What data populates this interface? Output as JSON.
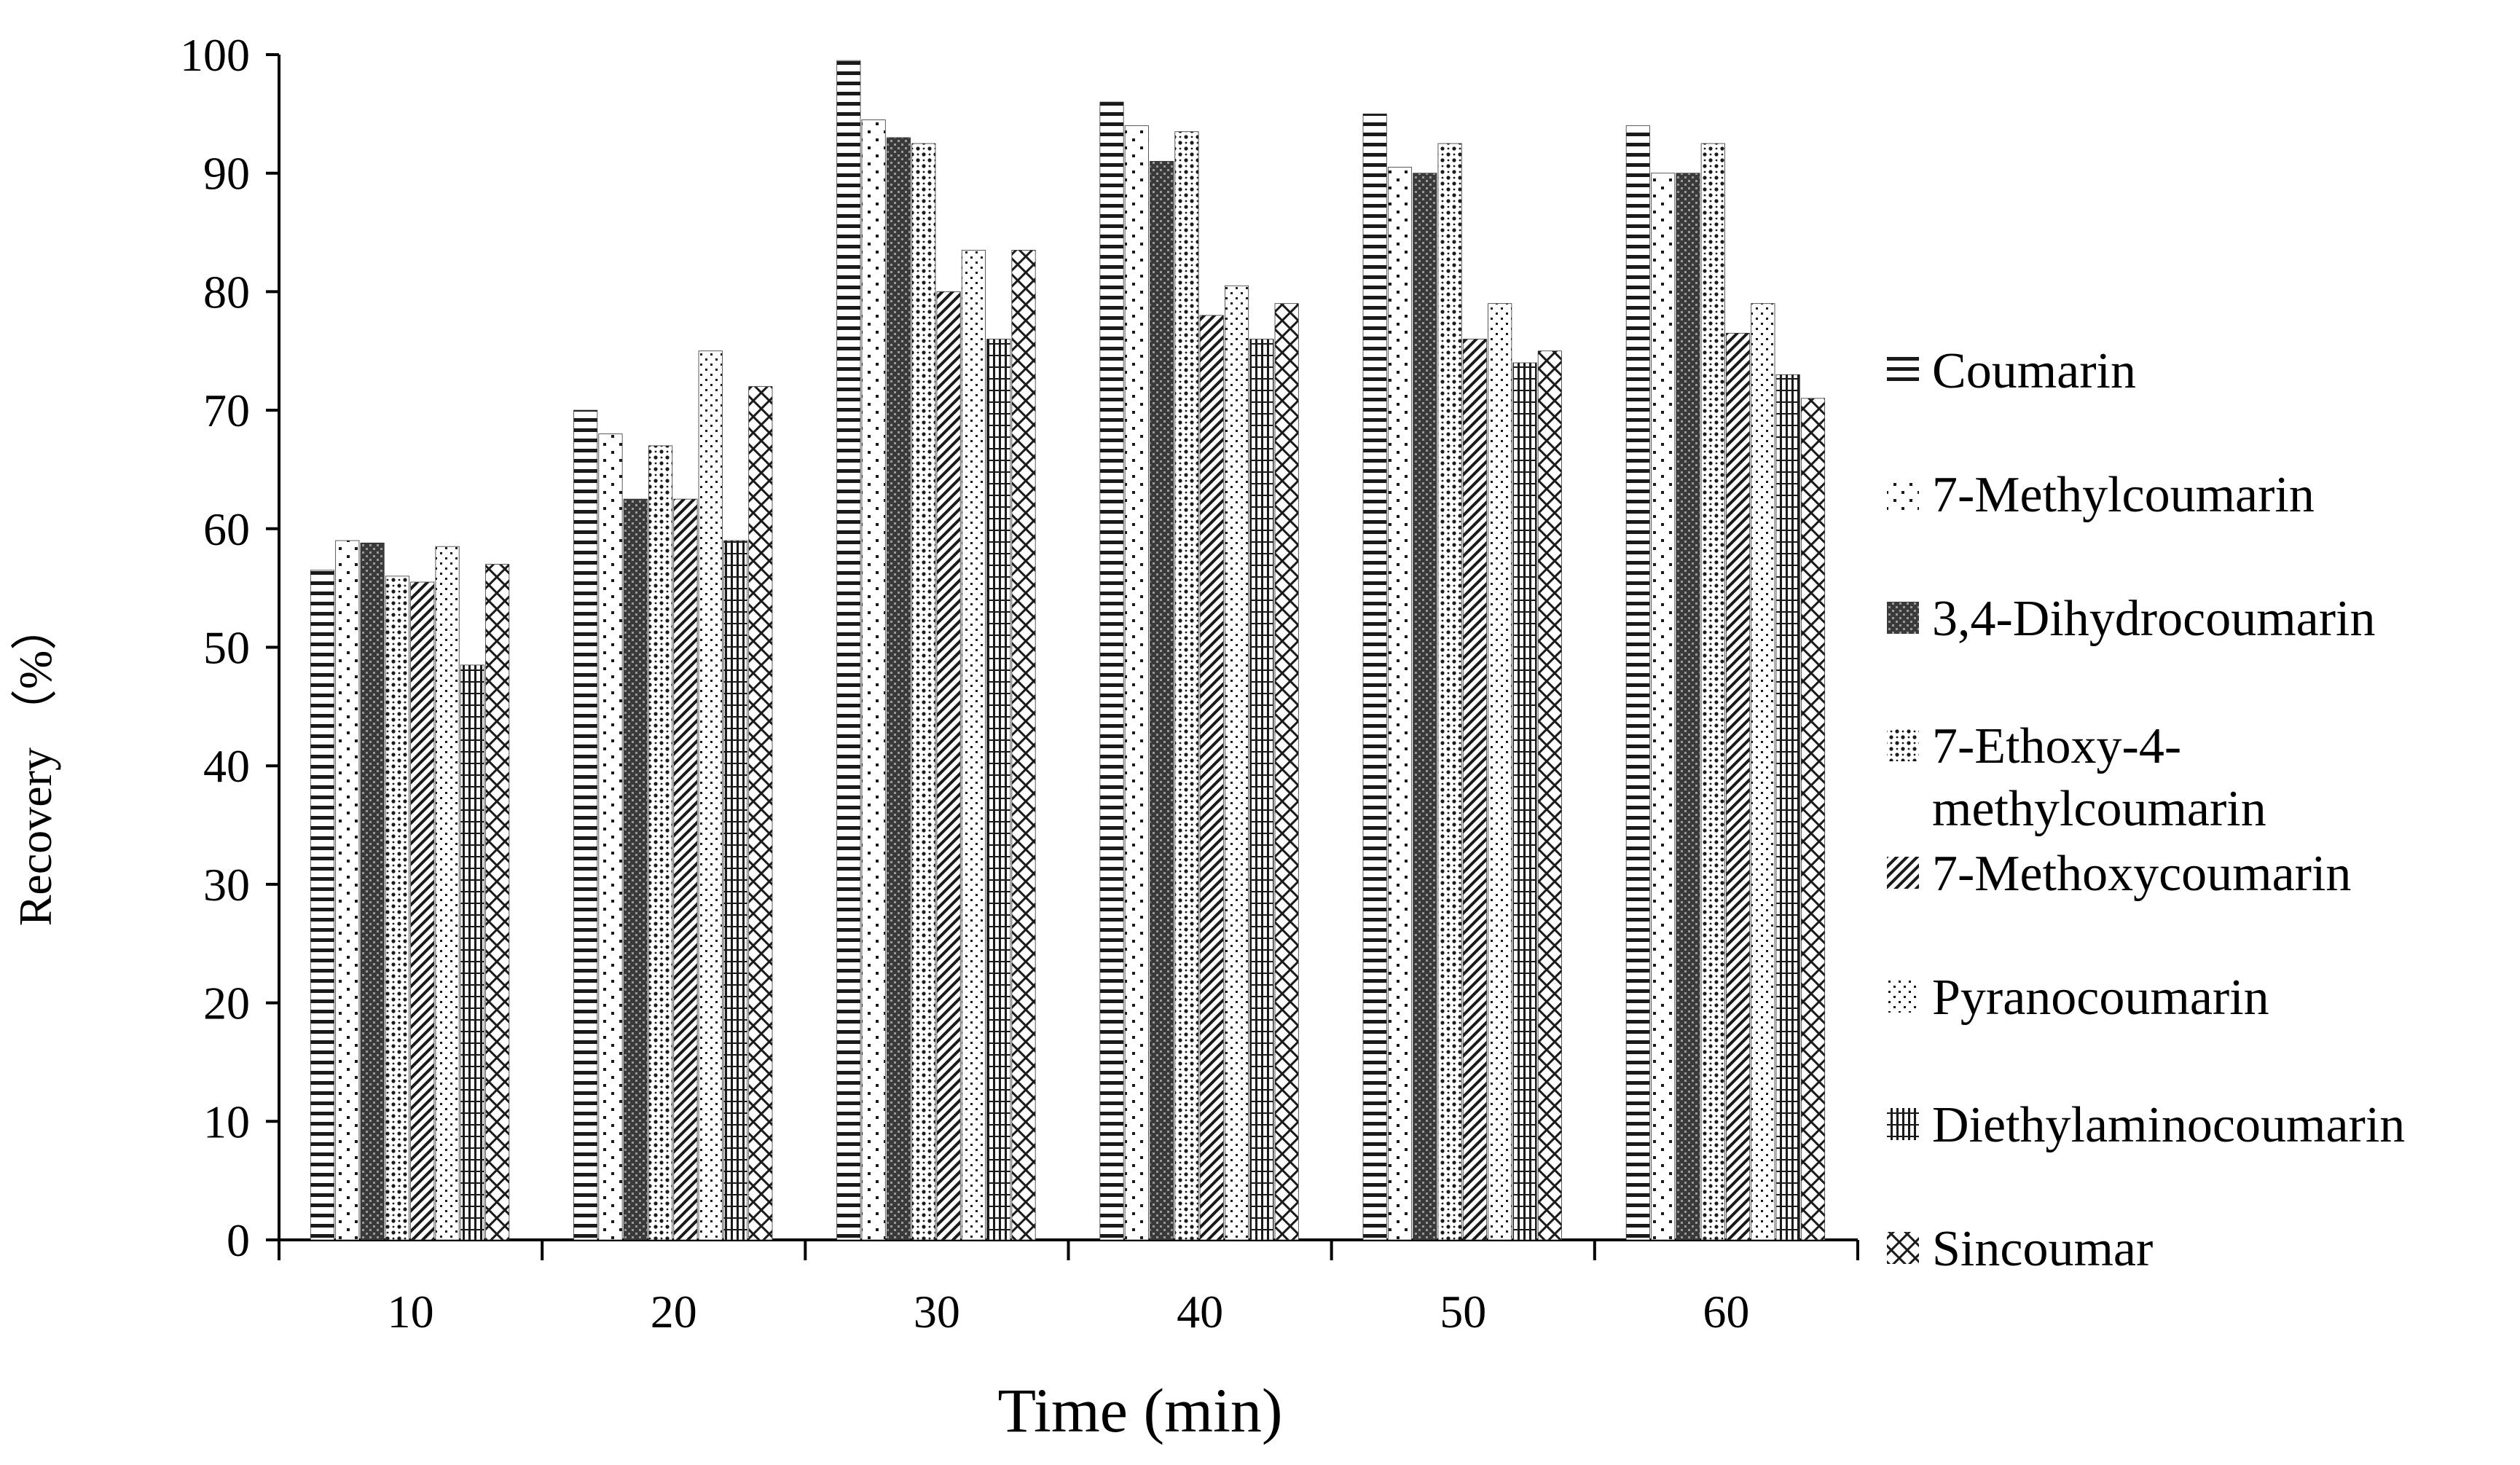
{
  "chart_data": {
    "type": "bar",
    "title": "",
    "xlabel": "Time (min)",
    "ylabel": "Recovery （%）",
    "ylim": [
      0,
      100
    ],
    "yticks": [
      0,
      10,
      20,
      30,
      40,
      50,
      60,
      70,
      80,
      90,
      100
    ],
    "grid": false,
    "legend_position": "right",
    "categories": [
      "10",
      "20",
      "30",
      "40",
      "50",
      "60"
    ],
    "series": [
      {
        "name": "Coumarin",
        "values": [
          56.5,
          70,
          99.5,
          96,
          95,
          94
        ],
        "pattern": "hlines"
      },
      {
        "name": "7-Methylcoumarin",
        "values": [
          59,
          68,
          94.5,
          94,
          90.5,
          90
        ],
        "pattern": "sparse-dots"
      },
      {
        "name": "3,4-Dihydrocoumarin",
        "values": [
          58.8,
          62.5,
          93,
          91,
          90,
          90
        ],
        "pattern": "dense-dots"
      },
      {
        "name": "7-Ethoxy-4-methylcoumarin",
        "values": [
          56,
          67,
          92.5,
          93.5,
          92.5,
          92.5
        ],
        "pattern": "diamond-dots"
      },
      {
        "name": "7-Methoxycoumarin",
        "values": [
          55.5,
          62.5,
          80,
          78,
          76,
          76.5
        ],
        "pattern": "diagonal-hatch"
      },
      {
        "name": "Pyranocoumarin",
        "values": [
          58.5,
          75,
          83.5,
          80.5,
          79,
          79
        ],
        "pattern": "fine-dots"
      },
      {
        "name": "Diethylaminocoumarin",
        "values": [
          48.5,
          59,
          76,
          76,
          74,
          73
        ],
        "pattern": "grid-vlines"
      },
      {
        "name": "Sincoumar",
        "values": [
          57,
          72,
          83.5,
          79,
          75,
          71
        ],
        "pattern": "cross-hatch"
      }
    ],
    "legend_symbols": [
      "≡",
      "⁚⁚",
      "▦",
      "◈",
      "⩕",
      "⁚⁚",
      "⊟",
      "×"
    ]
  },
  "colors": {
    "axis": "#000000",
    "bar_stroke": "#333333",
    "pattern_ink": "#1a1a1a",
    "background": "#ffffff"
  }
}
